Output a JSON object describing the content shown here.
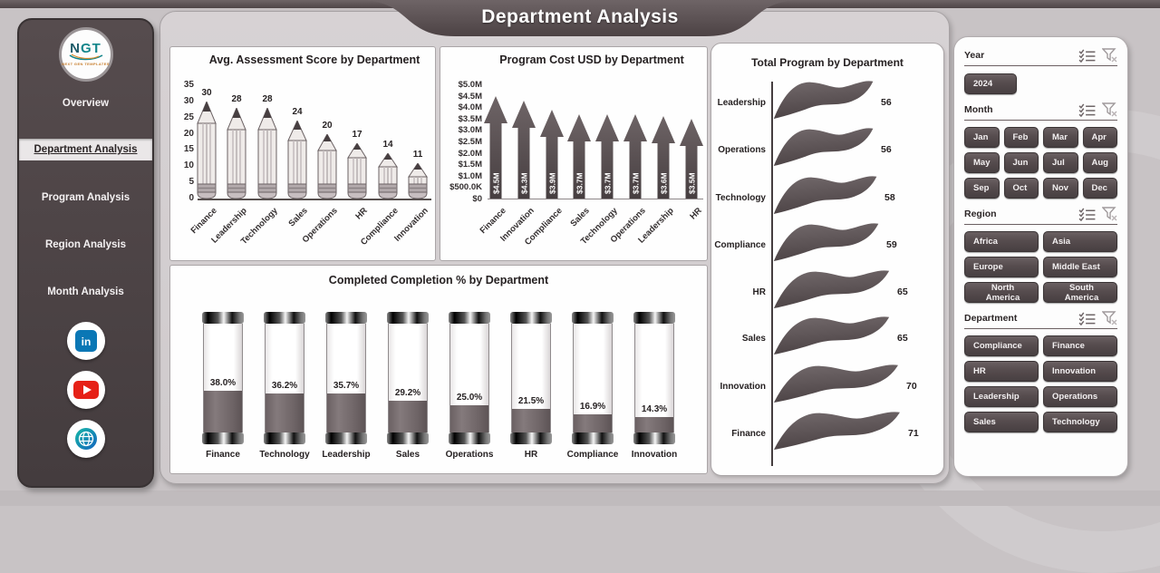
{
  "page": {
    "title": "Department Analysis"
  },
  "sidebar": {
    "logo": {
      "text_n": "N",
      "text_gt": "GT",
      "subtext": "NEXT GEN TEMPLATES"
    },
    "items": [
      {
        "label": "Overview",
        "selected": false
      },
      {
        "label": "Department Analysis",
        "selected": true
      },
      {
        "label": "Program  Analysis",
        "selected": false
      },
      {
        "label": "Region Analysis",
        "selected": false
      },
      {
        "label": "Month Analysis",
        "selected": false
      }
    ],
    "social": [
      {
        "name": "linkedin"
      },
      {
        "name": "youtube"
      },
      {
        "name": "website"
      }
    ]
  },
  "chart_data": [
    {
      "type": "bar",
      "style": "pencil",
      "title": "Avg. Assessment Score by Department",
      "categories": [
        "Finance",
        "Leadership",
        "Technology",
        "Sales",
        "Operations",
        "HR",
        "Compliance",
        "Innovation"
      ],
      "values": [
        30,
        28,
        28,
        24,
        20,
        17,
        14,
        11
      ],
      "labels": [
        "30",
        "28",
        "28",
        "24",
        "20",
        "17",
        "14",
        "11"
      ],
      "ylim": [
        0,
        35
      ],
      "yticks": [
        "35",
        "30",
        "25",
        "20",
        "15",
        "10",
        "5",
        "0"
      ],
      "xlabel": "",
      "ylabel": "",
      "grid": false,
      "legend": "none"
    },
    {
      "type": "bar",
      "style": "arrow",
      "title": "Program Cost USD by Department",
      "categories": [
        "Finance",
        "Innovation",
        "Compliance",
        "Sales",
        "Technology",
        "Operations",
        "Leadership",
        "HR"
      ],
      "values": [
        4.5,
        4.3,
        3.9,
        3.7,
        3.7,
        3.7,
        3.6,
        3.5
      ],
      "labels": [
        "$4.5M",
        "$4.3M",
        "$3.9M",
        "$3.7M",
        "$3.7M",
        "$3.7M",
        "$3.6M",
        "$3.5M"
      ],
      "unit": "USD millions",
      "ylim": [
        0,
        5
      ],
      "yticks": [
        "$5.0M",
        "$4.5M",
        "$4.0M",
        "$3.5M",
        "$3.0M",
        "$2.5M",
        "$2.0M",
        "$1.5M",
        "$1.0M",
        "$500.0K",
        "$0"
      ],
      "xlabel": "",
      "ylabel": "",
      "grid": false,
      "legend": "none"
    },
    {
      "type": "bar",
      "style": "thermometer",
      "title": "Completed Completion % by Department",
      "categories": [
        "Finance",
        "Technology",
        "Leadership",
        "Sales",
        "Operations",
        "HR",
        "Compliance",
        "Innovation"
      ],
      "values": [
        38.0,
        36.2,
        35.7,
        29.2,
        25.0,
        21.5,
        16.9,
        14.3
      ],
      "labels": [
        "38.0%",
        "36.2%",
        "35.7%",
        "29.2%",
        "25.0%",
        "21.5%",
        "16.9%",
        "14.3%"
      ],
      "ylim": [
        0,
        100
      ],
      "xlabel": "",
      "ylabel": "",
      "grid": false,
      "legend": "none"
    },
    {
      "type": "bar",
      "style": "horizontal-wave",
      "title": "Total Program by Department",
      "categories": [
        "Leadership",
        "Operations",
        "Technology",
        "Compliance",
        "HR",
        "Sales",
        "Innovation",
        "Finance"
      ],
      "values": [
        56,
        56,
        58,
        59,
        65,
        65,
        70,
        71
      ],
      "labels": [
        "56",
        "56",
        "58",
        "59",
        "65",
        "65",
        "70",
        "71"
      ],
      "xlabel": "",
      "ylabel": "",
      "grid": false,
      "legend": "none"
    }
  ],
  "filters": {
    "year": {
      "label": "Year",
      "options": [
        "2024"
      ]
    },
    "month": {
      "label": "Month",
      "options": [
        "Jan",
        "Feb",
        "Mar",
        "Apr",
        "May",
        "Jun",
        "Jul",
        "Aug",
        "Sep",
        "Oct",
        "Nov",
        "Dec"
      ]
    },
    "region": {
      "label": "Region",
      "options": [
        "Africa",
        "Asia",
        "Europe",
        "Middle East",
        "North America",
        "South America"
      ]
    },
    "department": {
      "label": "Department",
      "options": [
        "Compliance",
        "Finance",
        "HR",
        "Innovation",
        "Leadership",
        "Operations",
        "Sales",
        "Technology"
      ]
    }
  },
  "colors": {
    "accent_dark": "#544a4c",
    "sidebar_bg": "#4d4345",
    "page_bg": "#c8c3c5",
    "panel_bg": "#fefefe",
    "fill_taupe": "#746a6c",
    "linkedin_blue": "#0a77b5",
    "youtube_red": "#e62117",
    "logo_teal": "#12858a",
    "logo_orange": "#c77c2a"
  }
}
